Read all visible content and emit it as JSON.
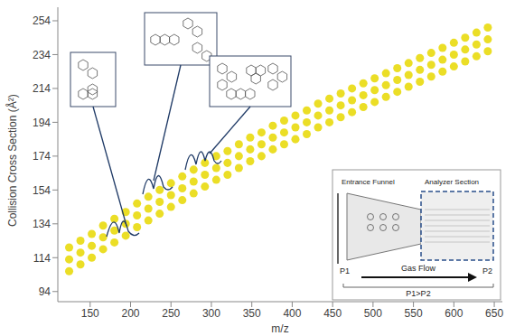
{
  "chart_data": {
    "type": "scatter",
    "x_label": "m/z",
    "y_label": "Collision Cross Section (Å²)",
    "xlim": [
      110,
      660
    ],
    "xticks": [
      150,
      200,
      250,
      300,
      350,
      400,
      450,
      500,
      550,
      600,
      650
    ],
    "ylim": [
      88,
      262
    ],
    "yticks": [
      94,
      114,
      134,
      154,
      174,
      194,
      214,
      234,
      254
    ],
    "grid": false,
    "color": "#e8d800",
    "marker": "circle",
    "x": [
      124,
      124,
      124,
      138,
      138,
      138,
      152,
      152,
      152,
      166,
      166,
      166,
      180,
      180,
      180,
      194,
      194,
      194,
      208,
      208,
      208,
      222,
      222,
      222,
      236,
      236,
      236,
      250,
      250,
      250,
      264,
      264,
      264,
      278,
      278,
      278,
      292,
      292,
      292,
      306,
      306,
      306,
      320,
      320,
      320,
      334,
      334,
      334,
      348,
      348,
      348,
      362,
      362,
      362,
      376,
      376,
      376,
      390,
      390,
      390,
      404,
      404,
      404,
      418,
      418,
      418,
      432,
      432,
      432,
      446,
      446,
      446,
      460,
      460,
      460,
      474,
      474,
      474,
      488,
      488,
      488,
      502,
      502,
      502,
      516,
      516,
      516,
      530,
      530,
      530,
      544,
      544,
      544,
      558,
      558,
      558,
      572,
      572,
      572,
      586,
      586,
      586,
      600,
      600,
      600,
      614,
      614,
      614,
      628,
      628,
      628,
      642,
      642,
      642
    ],
    "values": [
      106,
      113,
      120,
      110,
      117,
      124,
      114,
      121,
      128,
      119,
      126,
      133,
      123,
      130,
      137,
      127,
      134,
      141,
      132,
      139,
      146,
      136,
      143,
      150,
      140,
      147,
      154,
      144,
      151,
      158,
      148,
      155,
      162,
      152,
      159,
      166,
      156,
      163,
      170,
      160,
      167,
      174,
      163,
      170,
      177,
      167,
      174,
      181,
      171,
      178,
      185,
      174,
      181,
      188,
      178,
      185,
      192,
      181,
      188,
      195,
      184,
      191,
      198,
      187,
      194,
      201,
      191,
      198,
      205,
      194,
      201,
      208,
      197,
      204,
      211,
      200,
      207,
      214,
      203,
      210,
      217,
      206,
      213,
      220,
      209,
      216,
      223,
      212,
      219,
      226,
      215,
      222,
      229,
      218,
      225,
      232,
      221,
      228,
      235,
      224,
      231,
      238,
      227,
      234,
      241,
      230,
      237,
      244,
      233,
      240,
      247,
      236,
      243,
      250
    ],
    "annotations": [
      "Entrance Funnel",
      "Analyzer Section",
      "Gas Flow",
      "P1",
      "P2",
      "P1>P2"
    ]
  }
}
